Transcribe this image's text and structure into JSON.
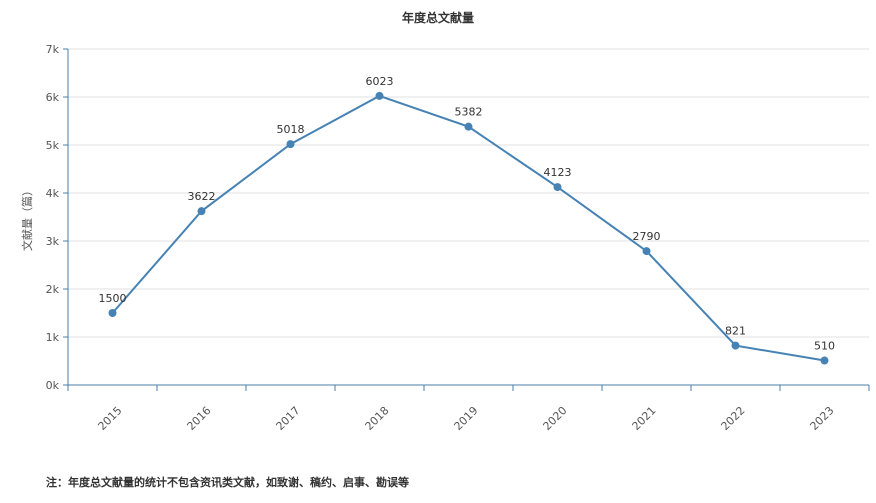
{
  "chart_data": {
    "type": "line",
    "title": "年度总文献量",
    "ylabel": "文献量（篇）",
    "xlabel": "",
    "categories": [
      "2015",
      "2016",
      "2017",
      "2018",
      "2019",
      "2020",
      "2021",
      "2022",
      "2023"
    ],
    "series": [
      {
        "values": [
          1500,
          3622,
          5018,
          6023,
          5382,
          4123,
          2790,
          821,
          510
        ]
      }
    ],
    "ylim": [
      0,
      7000
    ],
    "yticks": [
      0,
      1000,
      2000,
      3000,
      4000,
      5000,
      6000,
      7000
    ],
    "ytick_labels": [
      "0k",
      "1k",
      "2k",
      "3k",
      "4k",
      "5k",
      "6k",
      "7k"
    ],
    "grid": true,
    "line_color": "#4682b4",
    "footnote": "注：年度总文献量的统计不包含资讯类文献，如致谢、稿约、启事、勘误等"
  }
}
